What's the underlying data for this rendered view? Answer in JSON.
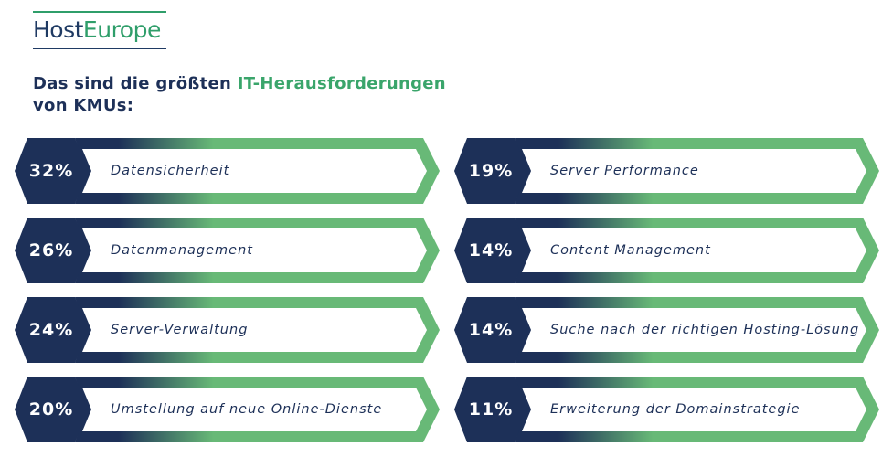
{
  "brand": {
    "host": "Host",
    "europe": "Europe"
  },
  "headline": {
    "line1_plain": "Das sind die größten ",
    "line1_accent": "IT-Herausforderungen",
    "line2": "von KMUs:"
  },
  "colors": {
    "navy": "#1d3058",
    "green": "#68b977",
    "white": "#ffffff"
  },
  "chart_data": {
    "type": "bar",
    "categories": [
      "Datensicherheit",
      "Server Performance",
      "Datenmanagement",
      "Content Management",
      "Server-Verwaltung",
      "Suche nach der richtigen Hosting-Lösung",
      "Umstellung auf neue Online-Dienste",
      "Erweiterung der Domainstrategie"
    ],
    "values": [
      32,
      19,
      26,
      14,
      24,
      14,
      20,
      11
    ],
    "value_labels": [
      "32%",
      "19%",
      "26%",
      "14%",
      "24%",
      "14%",
      "20%",
      "11%"
    ],
    "unit": "%"
  },
  "items": [
    {
      "pct": "32%",
      "label": "Datensicherheit"
    },
    {
      "pct": "19%",
      "label": "Server Performance"
    },
    {
      "pct": "26%",
      "label": "Datenmanagement"
    },
    {
      "pct": "14%",
      "label": "Content Management"
    },
    {
      "pct": "24%",
      "label": "Server-Verwaltung"
    },
    {
      "pct": "14%",
      "label": "Suche nach der richtigen Hosting-Lösung"
    },
    {
      "pct": "20%",
      "label": "Umstellung auf neue Online-Dienste"
    },
    {
      "pct": "11%",
      "label": "Erweiterung der Domainstrategie"
    }
  ]
}
